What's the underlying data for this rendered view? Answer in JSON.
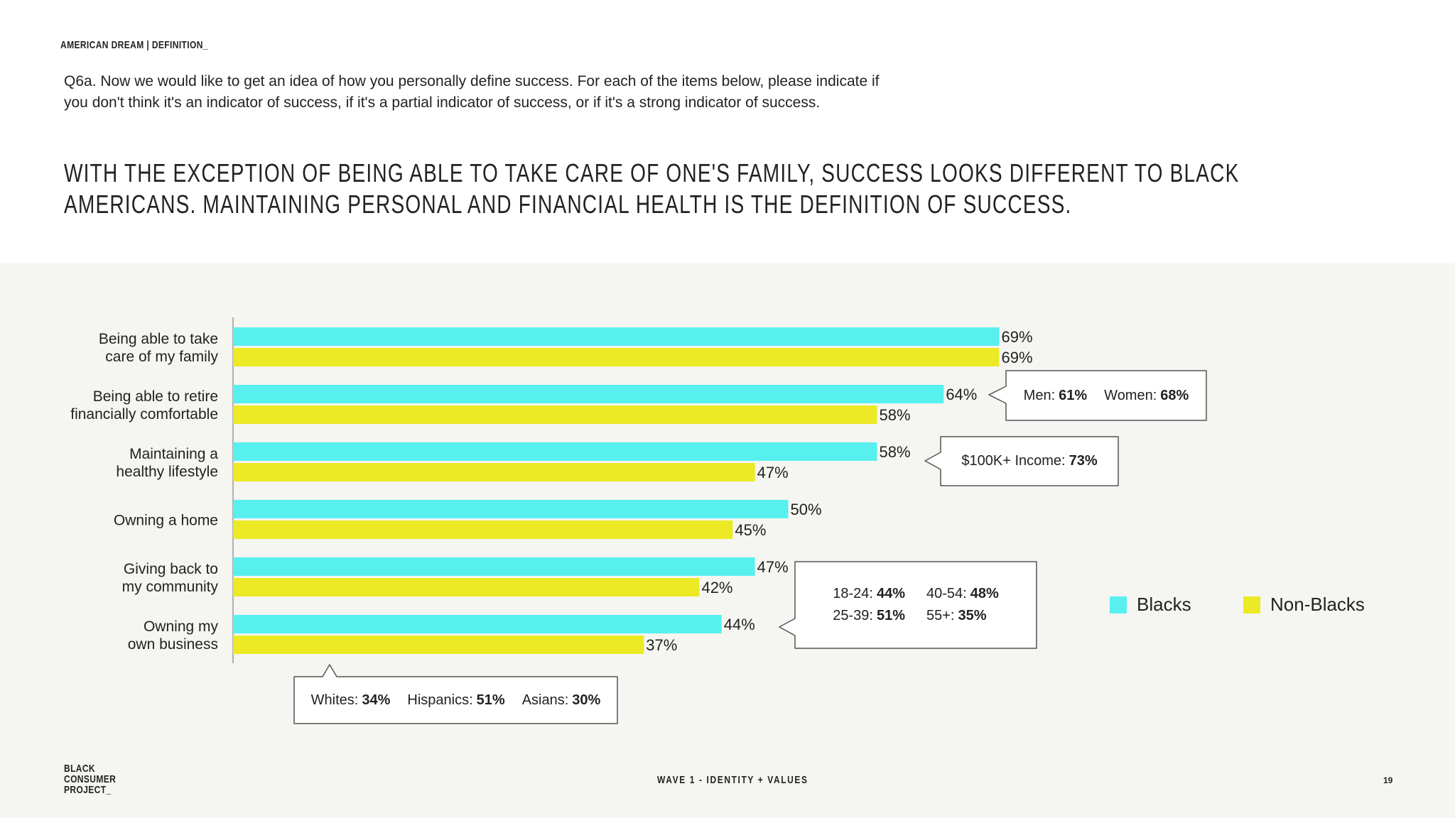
{
  "header": {
    "section": "AMERICAN DREAM | DEFINITION_",
    "question": "Q6a. Now we would like to get an idea of how you personally define success. For each of the items below, please indicate if you don't think it's an indicator of success, if it's a partial indicator of success, or if it's a strong indicator of success.",
    "headline": "WITH THE EXCEPTION OF BEING ABLE TO TAKE CARE OF ONE'S FAMILY, SUCCESS LOOKS DIFFERENT TO BLACK AMERICANS. MAINTAINING PERSONAL AND FINANCIAL HEALTH IS THE DEFINITION OF SUCCESS."
  },
  "chart_data": {
    "type": "bar",
    "orientation": "horizontal",
    "legend": "right",
    "categories": [
      "Being able to take\ncare of my family",
      "Being able to retire\nfinancially comfortable",
      "Maintaining a\nhealthy lifestyle",
      "Owning a home",
      "Giving back to\nmy community",
      "Owning my\nown business"
    ],
    "series": [
      {
        "name": "Blacks",
        "color": "#57f0ee",
        "values": [
          69,
          64,
          58,
          50,
          47,
          44
        ],
        "value_labels": [
          "69%",
          "64%",
          "58%",
          "50%",
          "47%",
          "44%"
        ]
      },
      {
        "name": "Non-Blacks",
        "color": "#ecea25",
        "values": [
          69,
          58,
          47,
          45,
          42,
          37
        ],
        "value_labels": [
          "69%",
          "58%",
          "47%",
          "45%",
          "42%",
          "37%"
        ]
      }
    ]
  },
  "callouts": [
    {
      "items": [
        {
          "label": "Men:",
          "value": "61%"
        },
        {
          "label": "Women:",
          "value": "68%"
        }
      ]
    },
    {
      "items": [
        {
          "label": "$100K+ Income:",
          "value": "73%"
        }
      ]
    },
    {
      "items": [
        {
          "label": "18-24:",
          "value": "44%"
        },
        {
          "label": "40-54:",
          "value": "48%"
        },
        {
          "label": "25-39:",
          "value": "51%"
        },
        {
          "label": "55+:",
          "value": "35%"
        }
      ]
    },
    {
      "items": [
        {
          "label": "Whites:",
          "value": "34%"
        },
        {
          "label": "Hispanics:",
          "value": "51%"
        },
        {
          "label": "Asians:",
          "value": "30%"
        }
      ]
    }
  ],
  "footer": {
    "logo": "BLACK\nCONSUMER\nPROJECT_",
    "center": "WAVE 1 - IDENTITY + VALUES",
    "page": "19"
  }
}
